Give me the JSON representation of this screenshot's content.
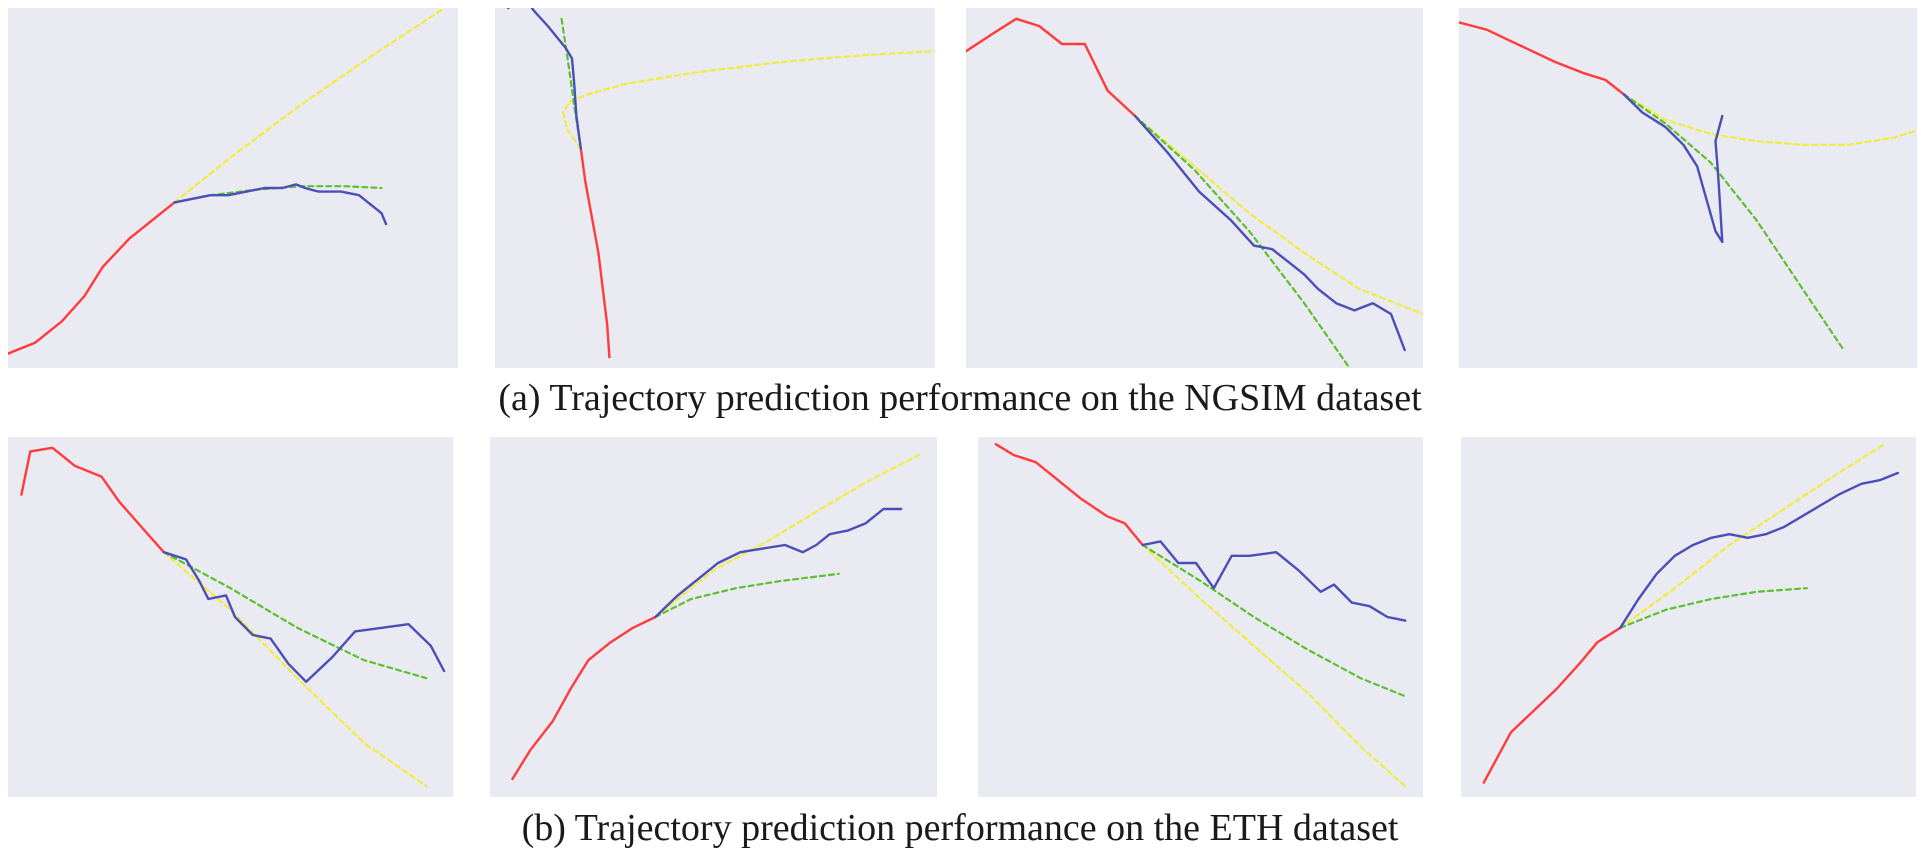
{
  "figure": {
    "captions": [
      "(a) Trajectory prediction performance on the NGSIM dataset",
      "(b) Trajectory prediction performance on the ETH dataset"
    ]
  },
  "colors": {
    "panel_bg": "#eaeaf2",
    "history": "#ff3b3b",
    "ground_truth": "#4a4fb8",
    "prediction_green": "#5cc02e",
    "prediction_yellow": "#f0ec3a"
  },
  "chart_data": [
    {
      "type": "line",
      "dataset": "NGSIM",
      "xlim": [
        0,
        100
      ],
      "ylim": [
        0,
        100
      ],
      "grid": false,
      "axes_visible": false,
      "series": [
        {
          "role": "history",
          "style": "solid",
          "color": "#ff3b3b",
          "x": [
            0,
            6,
            12,
            17,
            21,
            27,
            33,
            37
          ],
          "y": [
            4,
            7,
            13,
            20,
            28,
            36,
            42,
            46
          ]
        },
        {
          "role": "ground_truth",
          "style": "solid",
          "color": "#4a4fb8",
          "x": [
            37,
            41,
            45,
            49,
            53,
            57,
            61,
            64,
            66,
            69,
            74,
            78,
            80,
            82,
            83,
            84
          ],
          "y": [
            46,
            47,
            48,
            48,
            49,
            50,
            50,
            51,
            50,
            49,
            49,
            48,
            46,
            44,
            43,
            40
          ]
        },
        {
          "role": "prediction_green",
          "style": "dashed",
          "color": "#5cc02e",
          "x": [
            37,
            45,
            55,
            65,
            75,
            83
          ],
          "y": [
            46,
            48,
            49.5,
            50.5,
            50.5,
            50
          ]
        },
        {
          "role": "prediction_yellow",
          "style": "dashed",
          "color": "#f0ec3a",
          "x": [
            37,
            50,
            65,
            80,
            97
          ],
          "y": [
            46,
            59,
            73,
            86,
            100
          ]
        }
      ]
    },
    {
      "type": "line",
      "dataset": "NGSIM",
      "xlim": [
        0,
        100
      ],
      "ylim": [
        0,
        100
      ],
      "grid": false,
      "axes_visible": false,
      "series": [
        {
          "role": "history",
          "style": "solid",
          "color": "#ff3b3b",
          "x": [
            26,
            25.5,
            24.5,
            23.5,
            22,
            20.5,
            19.5
          ],
          "y": [
            3,
            12,
            22,
            32,
            42,
            52,
            61
          ]
        },
        {
          "role": "ground_truth",
          "style": "solid",
          "color": "#4a4fb8",
          "x": [
            19.5,
            18.5,
            18,
            17.5,
            16,
            12,
            9,
            6,
            3
          ],
          "y": [
            61,
            70,
            79,
            86,
            89,
            95,
            99,
            104,
            100
          ]
        },
        {
          "role": "prediction_green",
          "style": "dashed",
          "color": "#5cc02e",
          "x": [
            19.5,
            18,
            16.5,
            15
          ],
          "y": [
            61,
            73,
            86,
            98
          ]
        },
        {
          "role": "prediction_yellow",
          "style": "dashed",
          "color": "#f0ec3a",
          "x": [
            19.5,
            16.5,
            15.5,
            17,
            21,
            30,
            45,
            65,
            85,
            100
          ],
          "y": [
            61,
            66,
            71,
            74,
            76,
            79,
            82,
            85,
            87,
            88
          ]
        }
      ]
    },
    {
      "type": "line",
      "dataset": "NGSIM",
      "xlim": [
        0,
        100
      ],
      "ylim": [
        0,
        100
      ],
      "grid": false,
      "axes_visible": false,
      "series": [
        {
          "role": "history",
          "style": "solid",
          "color": "#ff3b3b",
          "x": [
            0,
            6,
            11,
            16,
            21,
            26,
            31,
            37
          ],
          "y": [
            88,
            93,
            97,
            95,
            90,
            90,
            77,
            70
          ]
        },
        {
          "role": "ground_truth",
          "style": "solid",
          "color": "#4a4fb8",
          "x": [
            37,
            44,
            51,
            58,
            63,
            67,
            71,
            74,
            77,
            81,
            85,
            89,
            93,
            96
          ],
          "y": [
            70,
            60,
            49,
            41,
            34,
            33,
            29,
            26,
            22,
            18,
            16,
            18,
            15,
            5
          ]
        },
        {
          "role": "prediction_green",
          "style": "dashed",
          "color": "#5cc02e",
          "x": [
            37,
            50,
            62,
            74,
            85
          ],
          "y": [
            70,
            55,
            38,
            18,
            -2
          ]
        },
        {
          "role": "prediction_yellow",
          "style": "dashed",
          "color": "#f0ec3a",
          "x": [
            37,
            50,
            62,
            74,
            86,
            100
          ],
          "y": [
            70,
            56,
            43,
            32,
            22,
            15
          ]
        }
      ]
    },
    {
      "type": "line",
      "dataset": "NGSIM",
      "xlim": [
        0,
        100
      ],
      "ylim": [
        0,
        100
      ],
      "grid": false,
      "axes_visible": false,
      "series": [
        {
          "role": "history",
          "style": "solid",
          "color": "#ff3b3b",
          "x": [
            0,
            6,
            11,
            16,
            21,
            27,
            32,
            36
          ],
          "y": [
            96,
            94,
            91,
            88,
            85,
            82,
            80,
            76
          ]
        },
        {
          "role": "ground_truth",
          "style": "solid",
          "color": "#4a4fb8",
          "x": [
            36,
            40,
            45,
            49,
            52,
            54,
            56,
            57.5,
            57,
            56.5,
            56,
            57.5
          ],
          "y": [
            76,
            71,
            67,
            62,
            56,
            47,
            38,
            35,
            45,
            55,
            63,
            70
          ]
        },
        {
          "role": "prediction_green",
          "style": "dashed",
          "color": "#5cc02e",
          "x": [
            36,
            45,
            55,
            65,
            75,
            84
          ],
          "y": [
            76,
            68,
            57,
            41,
            22,
            5
          ]
        },
        {
          "role": "prediction_yellow",
          "style": "dashed",
          "color": "#f0ec3a",
          "x": [
            36,
            45,
            55,
            65,
            75,
            85,
            95,
            100
          ],
          "y": [
            76,
            69,
            65,
            63,
            62,
            62,
            64,
            66
          ]
        }
      ]
    },
    {
      "type": "line",
      "dataset": "ETH",
      "xlim": [
        0,
        100
      ],
      "ylim": [
        0,
        100
      ],
      "grid": false,
      "axes_visible": false,
      "series": [
        {
          "role": "history",
          "style": "solid",
          "color": "#ff3b3b",
          "x": [
            3,
            5,
            10,
            15,
            21,
            25,
            30,
            35
          ],
          "y": [
            84,
            96,
            97,
            92,
            89,
            82,
            75,
            68
          ]
        },
        {
          "role": "ground_truth",
          "style": "solid",
          "color": "#4a4fb8",
          "x": [
            35,
            40,
            43,
            45,
            49,
            51,
            55,
            59,
            63,
            67,
            73,
            78,
            84,
            90,
            95,
            98
          ],
          "y": [
            68,
            66,
            60,
            55,
            56,
            50,
            45,
            44,
            37,
            32,
            39,
            46,
            47,
            48,
            42,
            35
          ]
        },
        {
          "role": "prediction_green",
          "style": "dashed",
          "color": "#5cc02e",
          "x": [
            35,
            50,
            65,
            80,
            94
          ],
          "y": [
            68,
            58,
            47,
            38,
            33
          ]
        },
        {
          "role": "prediction_yellow",
          "style": "dashed",
          "color": "#f0ec3a",
          "x": [
            35,
            50,
            65,
            80,
            94
          ],
          "y": [
            68,
            52,
            33,
            15,
            3
          ]
        }
      ]
    },
    {
      "type": "line",
      "dataset": "ETH",
      "xlim": [
        0,
        100
      ],
      "ylim": [
        0,
        100
      ],
      "grid": false,
      "axes_visible": false,
      "series": [
        {
          "role": "history",
          "style": "solid",
          "color": "#ff3b3b",
          "x": [
            5,
            9,
            14,
            18,
            22,
            27,
            32,
            37
          ],
          "y": [
            5,
            13,
            21,
            30,
            38,
            43,
            47,
            50
          ]
        },
        {
          "role": "ground_truth",
          "style": "solid",
          "color": "#4a4fb8",
          "x": [
            37,
            42,
            47,
            51,
            56,
            61,
            66,
            70,
            73,
            76,
            80,
            84,
            88,
            92
          ],
          "y": [
            50,
            56,
            61,
            65,
            68,
            69,
            70,
            68,
            70,
            73,
            74,
            76,
            80,
            80
          ]
        },
        {
          "role": "prediction_green",
          "style": "dashed",
          "color": "#5cc02e",
          "x": [
            37,
            45,
            55,
            65,
            78
          ],
          "y": [
            50,
            55,
            58,
            60,
            62
          ]
        },
        {
          "role": "prediction_yellow",
          "style": "dashed",
          "color": "#f0ec3a",
          "x": [
            37,
            50,
            62,
            74,
            85,
            96
          ],
          "y": [
            50,
            63,
            71,
            80,
            88,
            95
          ]
        }
      ]
    },
    {
      "type": "line",
      "dataset": "ETH",
      "xlim": [
        0,
        100
      ],
      "ylim": [
        0,
        100
      ],
      "grid": false,
      "axes_visible": false,
      "series": [
        {
          "role": "history",
          "style": "solid",
          "color": "#ff3b3b",
          "x": [
            4,
            8,
            13,
            18,
            23,
            29,
            33,
            37
          ],
          "y": [
            98,
            95,
            93,
            88,
            83,
            78,
            76,
            70
          ]
        },
        {
          "role": "ground_truth",
          "style": "solid",
          "color": "#4a4fb8",
          "x": [
            37,
            41,
            45,
            49,
            53,
            57,
            61,
            67,
            72,
            77,
            80,
            84,
            88,
            92,
            96
          ],
          "y": [
            70,
            71,
            65,
            65,
            58,
            67,
            67,
            68,
            63,
            57,
            59,
            54,
            53,
            50,
            49
          ]
        },
        {
          "role": "prediction_green",
          "style": "dashed",
          "color": "#5cc02e",
          "x": [
            37,
            50,
            62,
            74,
            86,
            96
          ],
          "y": [
            70,
            60,
            50,
            41,
            33,
            28
          ]
        },
        {
          "role": "prediction_yellow",
          "style": "dashed",
          "color": "#f0ec3a",
          "x": [
            37,
            50,
            62,
            74,
            86,
            96
          ],
          "y": [
            70,
            55,
            42,
            29,
            14,
            3
          ]
        }
      ]
    },
    {
      "type": "line",
      "dataset": "ETH",
      "xlim": [
        0,
        100
      ],
      "ylim": [
        0,
        100
      ],
      "grid": false,
      "axes_visible": false,
      "series": [
        {
          "role": "history",
          "style": "solid",
          "color": "#ff3b3b",
          "x": [
            5,
            11,
            16,
            21,
            26,
            30,
            35
          ],
          "y": [
            4,
            18,
            24,
            30,
            37,
            43,
            47
          ]
        },
        {
          "role": "ground_truth",
          "style": "solid",
          "color": "#4a4fb8",
          "x": [
            35,
            39,
            43,
            47,
            51,
            55,
            59,
            63,
            67,
            71,
            75,
            79,
            83,
            88,
            92,
            96
          ],
          "y": [
            47,
            55,
            62,
            67,
            70,
            72,
            73,
            72,
            73,
            75,
            78,
            81,
            84,
            87,
            88,
            90
          ]
        },
        {
          "role": "prediction_green",
          "style": "dashed",
          "color": "#5cc02e",
          "x": [
            35,
            45,
            55,
            65,
            76
          ],
          "y": [
            47,
            52,
            55,
            57,
            58
          ]
        },
        {
          "role": "prediction_yellow",
          "style": "dashed",
          "color": "#f0ec3a",
          "x": [
            35,
            47,
            59,
            71,
            83,
            93
          ],
          "y": [
            47,
            58,
            70,
            80,
            90,
            98
          ]
        }
      ]
    }
  ]
}
